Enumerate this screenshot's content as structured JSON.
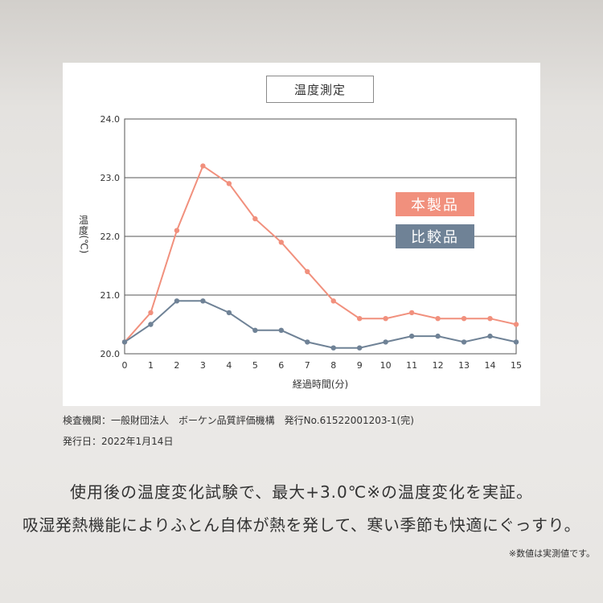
{
  "chart_data": {
    "type": "line",
    "title": "温度測定",
    "xlabel": "経過時間(分)",
    "ylabel": "温度(℃)",
    "x": [
      0,
      1,
      2,
      3,
      4,
      5,
      6,
      7,
      8,
      9,
      10,
      11,
      12,
      13,
      14,
      15
    ],
    "ylim": [
      20.0,
      24.0
    ],
    "xlim": [
      0,
      15
    ],
    "yticks": [
      "20.0",
      "21.0",
      "22.0",
      "23.0",
      "24.0"
    ],
    "xticks": [
      "0",
      "1",
      "2",
      "3",
      "4",
      "5",
      "6",
      "7",
      "8",
      "9",
      "10",
      "11",
      "12",
      "13",
      "14",
      "15"
    ],
    "grid": true,
    "legend_position": "right",
    "series": [
      {
        "name": "本製品",
        "color": "#f1907d",
        "values": [
          20.2,
          20.7,
          22.1,
          23.2,
          22.9,
          22.3,
          21.9,
          21.4,
          20.9,
          20.6,
          20.6,
          20.7,
          20.6,
          20.6,
          20.6,
          20.5
        ]
      },
      {
        "name": "比較品",
        "color": "#6f8296",
        "values": [
          20.2,
          20.5,
          20.9,
          20.9,
          20.7,
          20.4,
          20.4,
          20.2,
          20.1,
          20.1,
          20.2,
          20.3,
          20.3,
          20.2,
          20.3,
          20.2
        ]
      }
    ]
  },
  "ylabel_parts": {
    "first": "温",
    "second": "度",
    "unit": "(℃)"
  },
  "notes": {
    "line1": "検査機関：一般財団法人　ボーケン品質評価機構　発行No.61522001203-1(完)",
    "line2": "発行日：2022年1月14日"
  },
  "headline": {
    "line1": "使用後の温度変化試験で、最大+3.0℃※の温度変化を実証。",
    "line2": "吸湿発熱機能によりふとん自体が熱を発して、寒い季節も快適にぐっすり。"
  },
  "footnote": "※数値は実測値です。"
}
